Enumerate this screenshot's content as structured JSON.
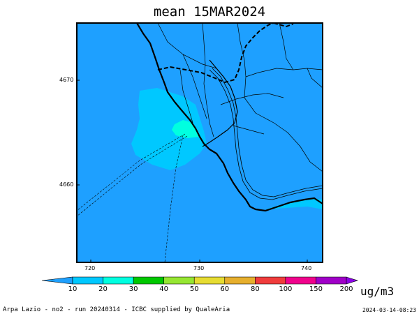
{
  "title": "mean 15MAR2024",
  "axes": {
    "x_ticks": [
      "720",
      "730",
      "740"
    ],
    "y_ticks": [
      "4670",
      "4660"
    ]
  },
  "colorbar": {
    "unit": "ug/m3",
    "labels": [
      "10",
      "20",
      "30",
      "40",
      "50",
      "60",
      "80",
      "100",
      "150",
      "200"
    ],
    "colors": [
      "#1ea0ff",
      "#00c8ff",
      "#00ffe0",
      "#00c800",
      "#96e632",
      "#e6dc32",
      "#e6af2d",
      "#f03c3c",
      "#f0028c",
      "#a000c8",
      "#8c00e6"
    ]
  },
  "map_colors": {
    "background": "#1ea0ff",
    "level_10_20": "#00c8ff"
  },
  "footer": {
    "left": "Arpa Lazio - no2 - run 20240314 - ICBC supplied by QualeAria",
    "right": "2024-03-14-08:23"
  }
}
